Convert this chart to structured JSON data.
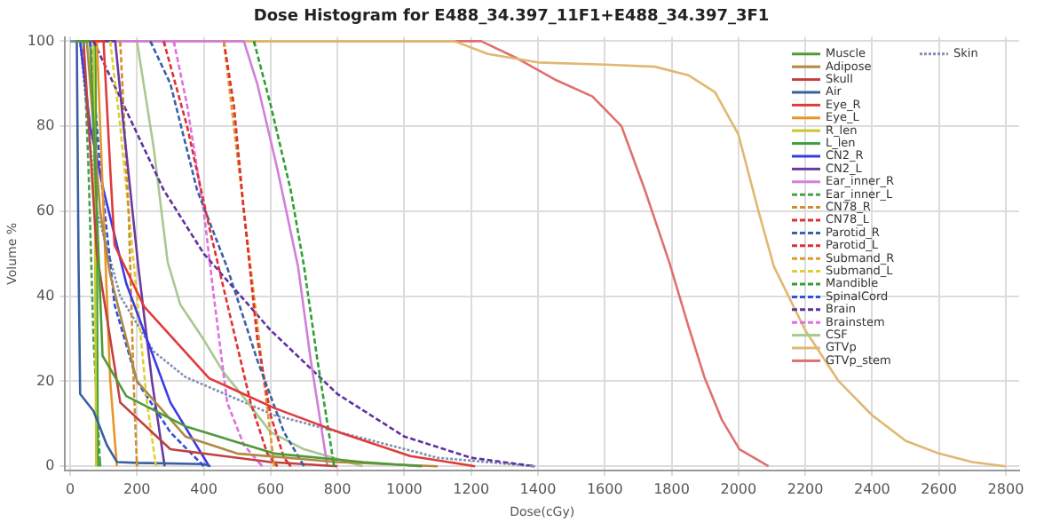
{
  "chart_data": {
    "type": "line",
    "title": "Dose Histogram for E488_34.397_11F1+E488_34.397_3F1",
    "xlabel": "Dose(cGy)",
    "ylabel": "Volume %",
    "xlim": [
      -15,
      2840
    ],
    "xticks": [
      0,
      200,
      400,
      600,
      800,
      1000,
      1200,
      1400,
      1600,
      1800,
      2000,
      2200,
      2400,
      2600,
      2800
    ],
    "ylim": [
      -1,
      101
    ],
    "yticks": [
      0,
      20,
      40,
      60,
      80,
      100
    ],
    "grid": true,
    "legend": "top right",
    "marker": "none",
    "series": [
      {
        "name": "Muscle",
        "color": "#4e9a3a",
        "line_style": "solid",
        "x": [
          0,
          60,
          80,
          97,
          168,
          345,
          611,
          876,
          1053
        ],
        "values": [
          100,
          100,
          60,
          26,
          16.5,
          9.4,
          3,
          1,
          0
        ]
      },
      {
        "name": "Adipose",
        "color": "#b08a40",
        "line_style": "solid",
        "x": [
          0,
          50,
          90,
          120,
          200,
          345,
          500,
          800,
          1100
        ],
        "values": [
          100,
          100,
          60,
          45,
          20,
          7,
          3,
          1,
          0
        ]
      },
      {
        "name": "Skull",
        "color": "#c04040",
        "line_style": "solid",
        "x": [
          0,
          40,
          80,
          150,
          300,
          600,
          800
        ],
        "values": [
          100,
          100,
          50,
          15,
          4,
          1,
          0
        ]
      },
      {
        "name": "Air",
        "color": "#3a5fa0",
        "line_style": "solid",
        "x": [
          0,
          20,
          25,
          30,
          70,
          110,
          140,
          200,
          400,
          420
        ],
        "values": [
          100,
          100,
          50,
          17,
          13,
          5,
          1,
          0.8,
          0.5,
          0
        ]
      },
      {
        "name": "Eye_R",
        "color": "#e03a3a",
        "line_style": "solid",
        "x": [
          0,
          100,
          120,
          133,
          221,
          416,
          611,
          805,
          1018,
          1212
        ],
        "values": [
          100,
          100,
          70,
          52,
          37.6,
          20.7,
          13.7,
          8,
          2.4,
          0
        ]
      },
      {
        "name": "Eye_L",
        "color": "#e8962a",
        "line_style": "solid",
        "x": [
          0,
          80,
          100,
          120,
          140
        ],
        "values": [
          100,
          100,
          60,
          20,
          0
        ]
      },
      {
        "name": "R_len",
        "color": "#c8c830",
        "line_style": "solid",
        "x": [
          0,
          70,
          75,
          78
        ],
        "values": [
          100,
          100,
          50,
          0
        ]
      },
      {
        "name": "L_len",
        "color": "#3aa03a",
        "line_style": "solid",
        "x": [
          0,
          75,
          80,
          83
        ],
        "values": [
          100,
          100,
          50,
          0
        ]
      },
      {
        "name": "CN2_R",
        "color": "#3a3ae8",
        "line_style": "solid",
        "x": [
          0,
          30,
          60,
          100,
          168,
          300,
          416
        ],
        "values": [
          100,
          100,
          80,
          65,
          43,
          15,
          0
        ]
      },
      {
        "name": "CN2_L",
        "color": "#6a3aa0",
        "line_style": "solid",
        "x": [
          0,
          135,
          160,
          204,
          245,
          283
        ],
        "values": [
          100,
          100,
          80,
          47,
          20,
          0
        ]
      },
      {
        "name": "Ear_inner_R",
        "color": "#d080d8",
        "line_style": "solid",
        "x": [
          0,
          520,
          560,
          620,
          682,
          720,
          770
        ],
        "values": [
          100,
          100,
          90,
          70,
          47,
          25,
          0
        ]
      },
      {
        "name": "Ear_inner_L",
        "color": "#4aa04a",
        "line_style": "dashed",
        "x": [
          40,
          55,
          70,
          90
        ],
        "values": [
          100,
          70,
          30,
          0
        ]
      },
      {
        "name": "CN78_R",
        "color": "#d09030",
        "line_style": "dashed",
        "x": [
          150,
          175,
          190,
          200
        ],
        "values": [
          100,
          60,
          20,
          0
        ]
      },
      {
        "name": "CN78_L",
        "color": "#e03030",
        "line_style": "dashed",
        "x": [
          280,
          350,
          420,
          480,
          540,
          590,
          620
        ],
        "values": [
          100,
          80,
          55,
          35,
          15,
          3,
          0
        ]
      },
      {
        "name": "Parotid_R",
        "color": "#3a60a8",
        "line_style": "dashed",
        "x": [
          240,
          300,
          380,
          469,
          560,
          640,
          700
        ],
        "values": [
          100,
          90,
          65,
          47,
          25,
          8,
          0
        ]
      },
      {
        "name": "Parotid_L",
        "color": "#e03030",
        "line_style": "dashed",
        "x": [
          460,
          490,
          520,
          560,
          600,
          640,
          660
        ],
        "values": [
          100,
          85,
          60,
          30,
          12,
          2,
          0
        ]
      },
      {
        "name": "Submand_R",
        "color": "#e09a30",
        "line_style": "dashed",
        "x": [
          460,
          490,
          540,
          580,
          611
        ],
        "values": [
          100,
          80,
          47,
          20,
          0
        ]
      },
      {
        "name": "Submand_L",
        "color": "#e0d030",
        "line_style": "dashed",
        "x": [
          120,
          150,
          200,
          230,
          257
        ],
        "values": [
          100,
          80,
          40,
          15,
          0
        ]
      },
      {
        "name": "Mandible",
        "color": "#30a030",
        "line_style": "dashed",
        "x": [
          550,
          600,
          660,
          700,
          740,
          790
        ],
        "values": [
          100,
          85,
          65,
          47,
          25,
          0
        ]
      },
      {
        "name": "SpinalCord",
        "color": "#3050e0",
        "line_style": "dashed",
        "x": [
          60,
          90,
          133,
          200,
          300,
          400
        ],
        "values": [
          100,
          70,
          38,
          20,
          8,
          0
        ]
      },
      {
        "name": "Brain",
        "color": "#6030a0",
        "line_style": "dashed",
        "x": [
          70,
          160,
          280,
          400,
          600,
          800,
          1000,
          1200,
          1390
        ],
        "values": [
          100,
          85,
          65,
          50,
          32,
          17,
          7,
          2,
          0
        ]
      },
      {
        "name": "Brainstem",
        "color": "#e070e0",
        "line_style": "dashed",
        "x": [
          310,
          350,
          400,
          430,
          470,
          520,
          575
        ],
        "values": [
          100,
          85,
          60,
          40,
          15,
          5,
          0
        ]
      },
      {
        "name": "CSF",
        "color": "#a8c890",
        "line_style": "solid",
        "x": [
          0,
          200,
          250,
          292,
          330,
          398,
          460,
          522,
          600,
          700,
          876
        ],
        "values": [
          100,
          100,
          75,
          48,
          38,
          30,
          22,
          16,
          8,
          4,
          0
        ]
      },
      {
        "name": "GTVp",
        "color": "#e0b870",
        "line_style": "solid",
        "x": [
          0,
          1150,
          1250,
          1400,
          1600,
          1750,
          1850,
          1930,
          2000,
          2060,
          2106,
          2200,
          2300,
          2400,
          2500,
          2600,
          2700,
          2800
        ],
        "values": [
          100,
          100,
          97,
          95,
          94.5,
          94,
          92,
          88,
          78,
          60,
          47,
          32,
          20,
          12,
          6,
          3,
          1,
          0
        ]
      },
      {
        "name": "GTVp_stem",
        "color": "#e07070",
        "line_style": "solid",
        "x": [
          0,
          1230,
          1337,
          1450,
          1563,
          1650,
          1720,
          1793,
          1850,
          1898,
          1950,
          2003,
          2090
        ],
        "values": [
          100,
          100,
          96,
          91,
          87,
          80,
          65,
          48,
          33,
          21,
          11,
          4,
          0
        ]
      },
      {
        "name": "Skin",
        "color": "#8090b0",
        "line_style": "dotted",
        "x": [
          0,
          30,
          80,
          150,
          250,
          345,
          611,
          876,
          1100,
          1390
        ],
        "values": [
          100,
          100,
          60,
          40,
          27,
          21,
          12,
          6.6,
          2,
          0
        ]
      }
    ]
  }
}
